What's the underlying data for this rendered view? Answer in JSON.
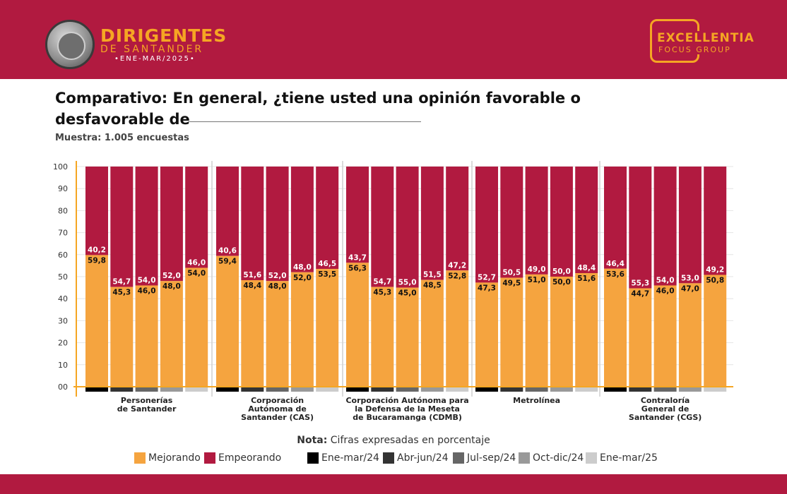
{
  "header": {
    "brand_title": "DIRIGENTES",
    "brand_subtitle": "DE SANTANDER",
    "brand_period": "•ENE-MAR/2025•",
    "company_name": "EXCELLENTIA",
    "company_sub": "FOCUS GROUP"
  },
  "question_title": "Comparativo: En general, ¿tiene usted una opinión favorable o desfavorable de",
  "sample_text": "Muestra: 1.005 encuestas",
  "note_label": "Nota:",
  "note_text": "Cifras expresadas en porcentaje",
  "legend": {
    "improving": "Mejorando",
    "worsening": "Empeorando",
    "periods": [
      "Ene-mar/24",
      "Abr-jun/24",
      "Jul-sep/24",
      "Oct-dic/24",
      "Ene-mar/25"
    ]
  },
  "colors": {
    "improving": "#f5a43f",
    "worsening": "#b11a40",
    "header_bg": "#b11a40",
    "accent": "#f5a623",
    "periods": [
      "#000000",
      "#333333",
      "#666666",
      "#999999",
      "#cccccc"
    ]
  },
  "chart_data": {
    "type": "bar",
    "stacked": true,
    "ylim": [
      0,
      100
    ],
    "yticks": [
      "00",
      "10",
      "20",
      "30",
      "40",
      "50",
      "60",
      "70",
      "80",
      "90",
      "100"
    ],
    "grid": true,
    "groups": [
      {
        "label": [
          "Personerías",
          "de Santander"
        ],
        "improving": [
          "59,8",
          "45,3",
          "46,0",
          "48,0",
          "54,0"
        ],
        "worsening": [
          "40,2",
          "54,7",
          "54,0",
          "52,0",
          "46,0"
        ]
      },
      {
        "label": [
          "Corporación",
          "Autónoma de",
          "Santander (CAS)"
        ],
        "improving": [
          "59,4",
          "48,4",
          "48,0",
          "52,0",
          "53,5"
        ],
        "worsening": [
          "40,6",
          "51,6",
          "52,0",
          "48,0",
          "46,5"
        ]
      },
      {
        "label": [
          "Corporación Autónoma para",
          "la Defensa de la Meseta",
          "de Bucaramanga (CDMB)"
        ],
        "improving": [
          "56,3",
          "45,3",
          "45,0",
          "48,5",
          "52,8"
        ],
        "worsening": [
          "43,7",
          "54,7",
          "55,0",
          "51,5",
          "47,2"
        ]
      },
      {
        "label": [
          "Metrolínea"
        ],
        "improving": [
          "47,3",
          "49,5",
          "51,0",
          "50,0",
          "51,6"
        ],
        "worsening": [
          "52,7",
          "50,5",
          "49,0",
          "50,0",
          "48,4"
        ]
      },
      {
        "label": [
          "Contraloría",
          "General de",
          "Santander (CGS)"
        ],
        "improving": [
          "53,6",
          "44,7",
          "46,0",
          "47,0",
          "50,8"
        ],
        "worsening": [
          "46,4",
          "55,3",
          "54,0",
          "53,0",
          "49,2"
        ]
      }
    ]
  }
}
